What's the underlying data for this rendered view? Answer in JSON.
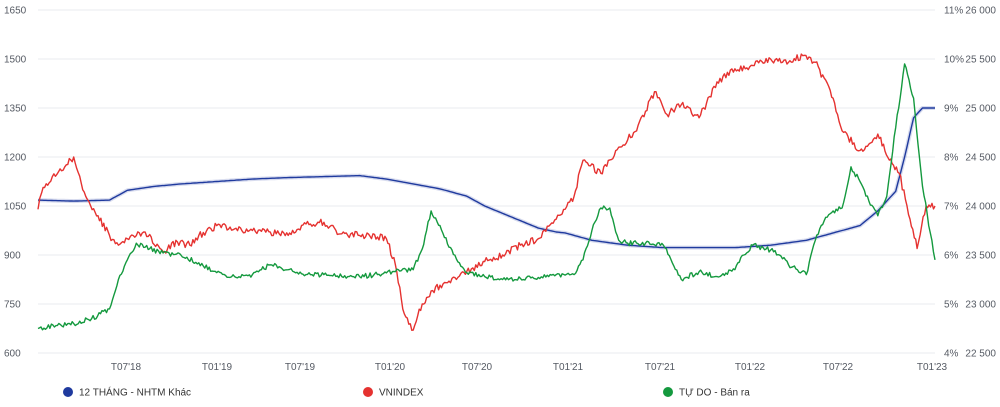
{
  "chart_data": {
    "type": "line",
    "title": "",
    "x_tick_labels": [
      "T07'18",
      "T01'19",
      "T07'19",
      "T01'20",
      "T07'20",
      "T01'21",
      "T07'21",
      "T01'22",
      "T07'22",
      "T01'23"
    ],
    "x_range": [
      2018.1,
      2023.12
    ],
    "axes": {
      "left": {
        "ticks": [
          "1650",
          "1500",
          "1350",
          "1200",
          "1050",
          "900",
          "750",
          "600"
        ],
        "range": [
          600,
          1650
        ]
      },
      "right1": {
        "ticks": [
          "11%",
          "10%",
          "9%",
          "8%",
          "7%",
          "6%",
          "5%",
          "4%"
        ],
        "range": [
          4,
          11
        ]
      },
      "right2": {
        "ticks": [
          "26 000",
          "25 500",
          "25 000",
          "24 500",
          "24 000",
          "23 500",
          "23 000",
          "22 500"
        ],
        "range": [
          22500,
          26000
        ]
      }
    },
    "series": [
      {
        "name": "12 THÁNG - NHTM Khác",
        "legend_label": "12 THÁNG - NHTM Khác",
        "axis": "right1",
        "color": "#1f3a9e",
        "x": [
          2018.1,
          2018.3,
          2018.5,
          2018.6,
          2018.75,
          2018.9,
          2019.1,
          2019.3,
          2019.5,
          2019.7,
          2019.9,
          2020.05,
          2020.2,
          2020.35,
          2020.5,
          2020.6,
          2020.7,
          2020.8,
          2020.9,
          2021.0,
          2021.05,
          2021.2,
          2021.4,
          2021.6,
          2021.8,
          2022.0,
          2022.2,
          2022.4,
          2022.5,
          2022.6,
          2022.7,
          2022.8,
          2022.9,
          2022.95,
          2023.0,
          2023.05,
          2023.12
        ],
        "values": [
          7.12,
          7.1,
          7.12,
          7.32,
          7.4,
          7.45,
          7.5,
          7.55,
          7.58,
          7.6,
          7.62,
          7.55,
          7.45,
          7.35,
          7.2,
          7.0,
          6.85,
          6.7,
          6.55,
          6.47,
          6.45,
          6.3,
          6.2,
          6.15,
          6.15,
          6.15,
          6.2,
          6.3,
          6.4,
          6.5,
          6.6,
          6.9,
          7.3,
          8.0,
          8.8,
          9.0,
          9.0
        ]
      },
      {
        "name": "VNINDEX",
        "legend_label": "VNINDEX",
        "axis": "left",
        "color": "#e53230",
        "x": [
          2018.1,
          2018.12,
          2018.18,
          2018.25,
          2018.3,
          2018.35,
          2018.42,
          2018.5,
          2018.55,
          2018.6,
          2018.7,
          2018.8,
          2018.88,
          2018.95,
          2019.0,
          2019.1,
          2019.2,
          2019.3,
          2019.4,
          2019.5,
          2019.6,
          2019.7,
          2019.8,
          2019.9,
          2020.0,
          2020.05,
          2020.1,
          2020.15,
          2020.2,
          2020.25,
          2020.3,
          2020.4,
          2020.5,
          2020.6,
          2020.7,
          2020.8,
          2020.9,
          2021.0,
          2021.05,
          2021.1,
          2021.15,
          2021.25,
          2021.35,
          2021.45,
          2021.5,
          2021.55,
          2021.62,
          2021.7,
          2021.8,
          2021.9,
          2022.0,
          2022.1,
          2022.2,
          2022.3,
          2022.38,
          2022.45,
          2022.55,
          2022.6,
          2022.7,
          2022.8,
          2022.88,
          2022.92,
          2022.98,
          2023.02,
          2023.07,
          2023.12
        ],
        "values": [
          1040,
          1090,
          1140,
          1170,
          1200,
          1100,
          1030,
          960,
          930,
          950,
          970,
          910,
          940,
          930,
          960,
          990,
          980,
          975,
          970,
          960,
          995,
          1000,
          965,
          960,
          955,
          950,
          870,
          720,
          670,
          750,
          790,
          820,
          850,
          880,
          900,
          930,
          950,
          1010,
          1040,
          1080,
          1190,
          1150,
          1230,
          1280,
          1340,
          1400,
          1330,
          1360,
          1320,
          1430,
          1470,
          1480,
          1500,
          1490,
          1510,
          1490,
          1380,
          1280,
          1220,
          1270,
          1180,
          1150,
          1010,
          920,
          1050,
          1050
        ]
      },
      {
        "name": "TỰ DO - Bán ra",
        "legend_label": "TỰ DO - Bán ra",
        "axis": "right2",
        "color": "#14993e",
        "x": [
          2018.1,
          2018.2,
          2018.3,
          2018.4,
          2018.5,
          2018.55,
          2018.6,
          2018.65,
          2018.7,
          2018.8,
          2018.9,
          2019.0,
          2019.1,
          2019.2,
          2019.3,
          2019.35,
          2019.4,
          2019.5,
          2019.6,
          2019.7,
          2019.8,
          2019.9,
          2020.0,
          2020.1,
          2020.2,
          2020.25,
          2020.3,
          2020.35,
          2020.4,
          2020.45,
          2020.5,
          2020.6,
          2020.7,
          2020.8,
          2020.9,
          2021.0,
          2021.1,
          2021.15,
          2021.2,
          2021.25,
          2021.3,
          2021.35,
          2021.4,
          2021.5,
          2021.6,
          2021.7,
          2021.8,
          2021.9,
          2022.0,
          2022.05,
          2022.1,
          2022.2,
          2022.25,
          2022.3,
          2022.35,
          2022.4,
          2022.45,
          2022.5,
          2022.55,
          2022.6,
          2022.65,
          2022.7,
          2022.75,
          2022.8,
          2022.85,
          2022.9,
          2022.95,
          2023.0,
          2023.05,
          2023.12
        ],
        "values": [
          22750,
          22780,
          22800,
          22850,
          22950,
          23250,
          23450,
          23620,
          23580,
          23520,
          23500,
          23420,
          23320,
          23280,
          23300,
          23350,
          23400,
          23350,
          23300,
          23300,
          23280,
          23280,
          23300,
          23330,
          23350,
          23560,
          23950,
          23800,
          23580,
          23430,
          23320,
          23280,
          23250,
          23260,
          23270,
          23300,
          23300,
          23450,
          23750,
          23980,
          23980,
          23650,
          23620,
          23620,
          23600,
          23250,
          23330,
          23280,
          23350,
          23500,
          23600,
          23550,
          23500,
          23400,
          23350,
          23300,
          23650,
          23850,
          23950,
          23980,
          24400,
          24250,
          24050,
          23900,
          24100,
          24800,
          25450,
          25100,
          24200,
          23450
        ]
      }
    ]
  }
}
